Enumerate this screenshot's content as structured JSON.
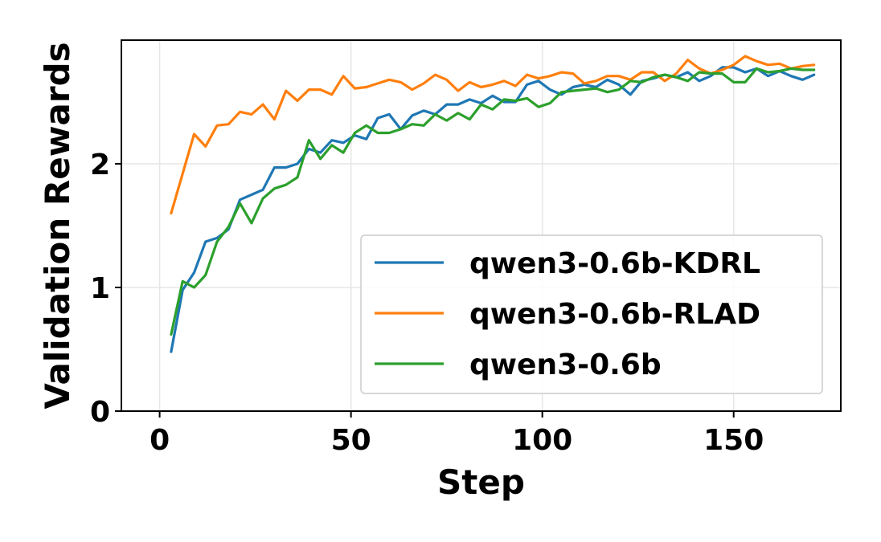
{
  "chart_data": {
    "type": "line",
    "title": "",
    "xlabel": "Step",
    "ylabel": "Validation Rewards",
    "xlim": [
      -10,
      178
    ],
    "ylim": [
      0,
      3.0
    ],
    "xticks": [
      0,
      50,
      100,
      150
    ],
    "yticks": [
      0,
      1,
      2
    ],
    "grid": true,
    "legend_position": "center-right",
    "x": [
      3,
      6,
      9,
      12,
      15,
      18,
      21,
      24,
      27,
      30,
      33,
      36,
      39,
      42,
      45,
      48,
      51,
      54,
      57,
      60,
      63,
      66,
      69,
      72,
      75,
      78,
      81,
      84,
      87,
      90,
      93,
      96,
      99,
      102,
      105,
      108,
      111,
      114,
      117,
      120,
      123,
      126,
      129,
      132,
      135,
      138,
      141,
      144,
      147,
      150,
      153,
      156,
      159,
      162,
      165,
      168,
      171
    ],
    "series": [
      {
        "name": "qwen3-0.6b-KDRL",
        "color": "#1f77b4",
        "values": [
          0.48,
          0.98,
          1.12,
          1.37,
          1.4,
          1.47,
          1.71,
          1.75,
          1.79,
          1.97,
          1.97,
          2.0,
          2.12,
          2.09,
          2.19,
          2.17,
          2.23,
          2.2,
          2.37,
          2.4,
          2.28,
          2.39,
          2.43,
          2.4,
          2.48,
          2.48,
          2.52,
          2.49,
          2.55,
          2.5,
          2.5,
          2.64,
          2.67,
          2.6,
          2.56,
          2.62,
          2.64,
          2.62,
          2.68,
          2.64,
          2.56,
          2.67,
          2.69,
          2.72,
          2.7,
          2.74,
          2.67,
          2.71,
          2.78,
          2.78,
          2.74,
          2.77,
          2.71,
          2.75,
          2.71,
          2.68,
          2.72
        ]
      },
      {
        "name": "qwen3-0.6b-RLAD",
        "color": "#ff7f0e",
        "values": [
          1.6,
          1.92,
          2.24,
          2.14,
          2.31,
          2.32,
          2.42,
          2.4,
          2.48,
          2.36,
          2.59,
          2.51,
          2.6,
          2.6,
          2.56,
          2.71,
          2.61,
          2.62,
          2.65,
          2.68,
          2.66,
          2.6,
          2.65,
          2.72,
          2.68,
          2.59,
          2.66,
          2.62,
          2.64,
          2.67,
          2.63,
          2.72,
          2.69,
          2.71,
          2.74,
          2.73,
          2.65,
          2.67,
          2.71,
          2.71,
          2.68,
          2.74,
          2.74,
          2.67,
          2.73,
          2.84,
          2.77,
          2.73,
          2.76,
          2.8,
          2.87,
          2.83,
          2.8,
          2.81,
          2.77,
          2.79,
          2.8
        ]
      },
      {
        "name": "qwen3-0.6b",
        "color": "#2ca02c",
        "values": [
          0.62,
          1.05,
          1.0,
          1.1,
          1.37,
          1.49,
          1.68,
          1.52,
          1.72,
          1.8,
          1.83,
          1.89,
          2.19,
          2.04,
          2.15,
          2.09,
          2.25,
          2.31,
          2.25,
          2.25,
          2.28,
          2.32,
          2.31,
          2.4,
          2.35,
          2.41,
          2.36,
          2.48,
          2.44,
          2.52,
          2.51,
          2.53,
          2.46,
          2.49,
          2.58,
          2.59,
          2.6,
          2.61,
          2.58,
          2.6,
          2.67,
          2.66,
          2.7,
          2.72,
          2.7,
          2.67,
          2.74,
          2.73,
          2.73,
          2.66,
          2.66,
          2.77,
          2.74,
          2.75,
          2.77,
          2.76,
          2.76
        ]
      }
    ]
  }
}
